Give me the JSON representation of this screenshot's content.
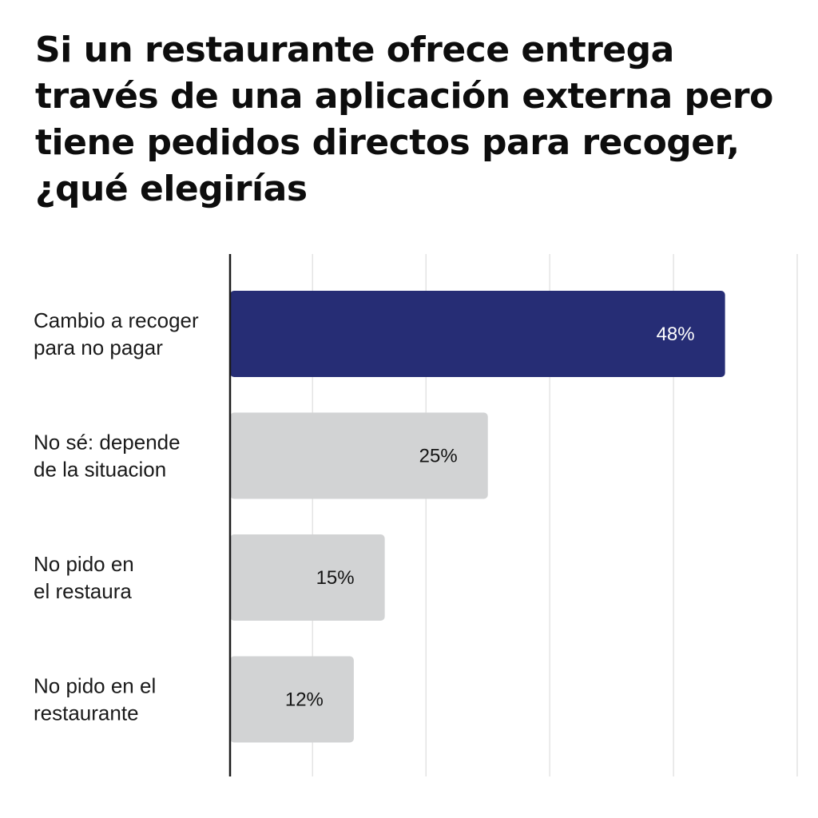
{
  "title_lines": [
    "Si un restaurante ofrece entrega",
    "través de una aplicación externa pero",
    "tiene pedidos directos para recoger,",
    "¿qué elegirías"
  ],
  "chart_data": {
    "type": "bar",
    "orientation": "horizontal",
    "title": "Si un restaurante ofrece entrega través de una aplicación externa pero tiene pedidos directos para recoger, ¿qué elegirías",
    "categories": [
      [
        "Cambio a recoger",
        "para no pagar"
      ],
      [
        "No sé: depende",
        "de la situacion"
      ],
      [
        "No pido en",
        "el restaura"
      ],
      [
        "No pido en el",
        "restaurante"
      ]
    ],
    "values": [
      48,
      25,
      15,
      12
    ],
    "value_labels": [
      "48%",
      "25%",
      "15%",
      "12%"
    ],
    "xlim": [
      0,
      55
    ],
    "grid": true,
    "gridlines_at": [
      8,
      19,
      31,
      43,
      55
    ],
    "xlabel": "",
    "ylabel": "",
    "colors": {
      "highlight": "#262d75",
      "default": "#d2d3d4",
      "highlight_text": "#ffffff",
      "default_text": "#141414",
      "grid": "#e4e4e4",
      "axis": "#1a1a1a"
    },
    "highlight_index": 0
  }
}
